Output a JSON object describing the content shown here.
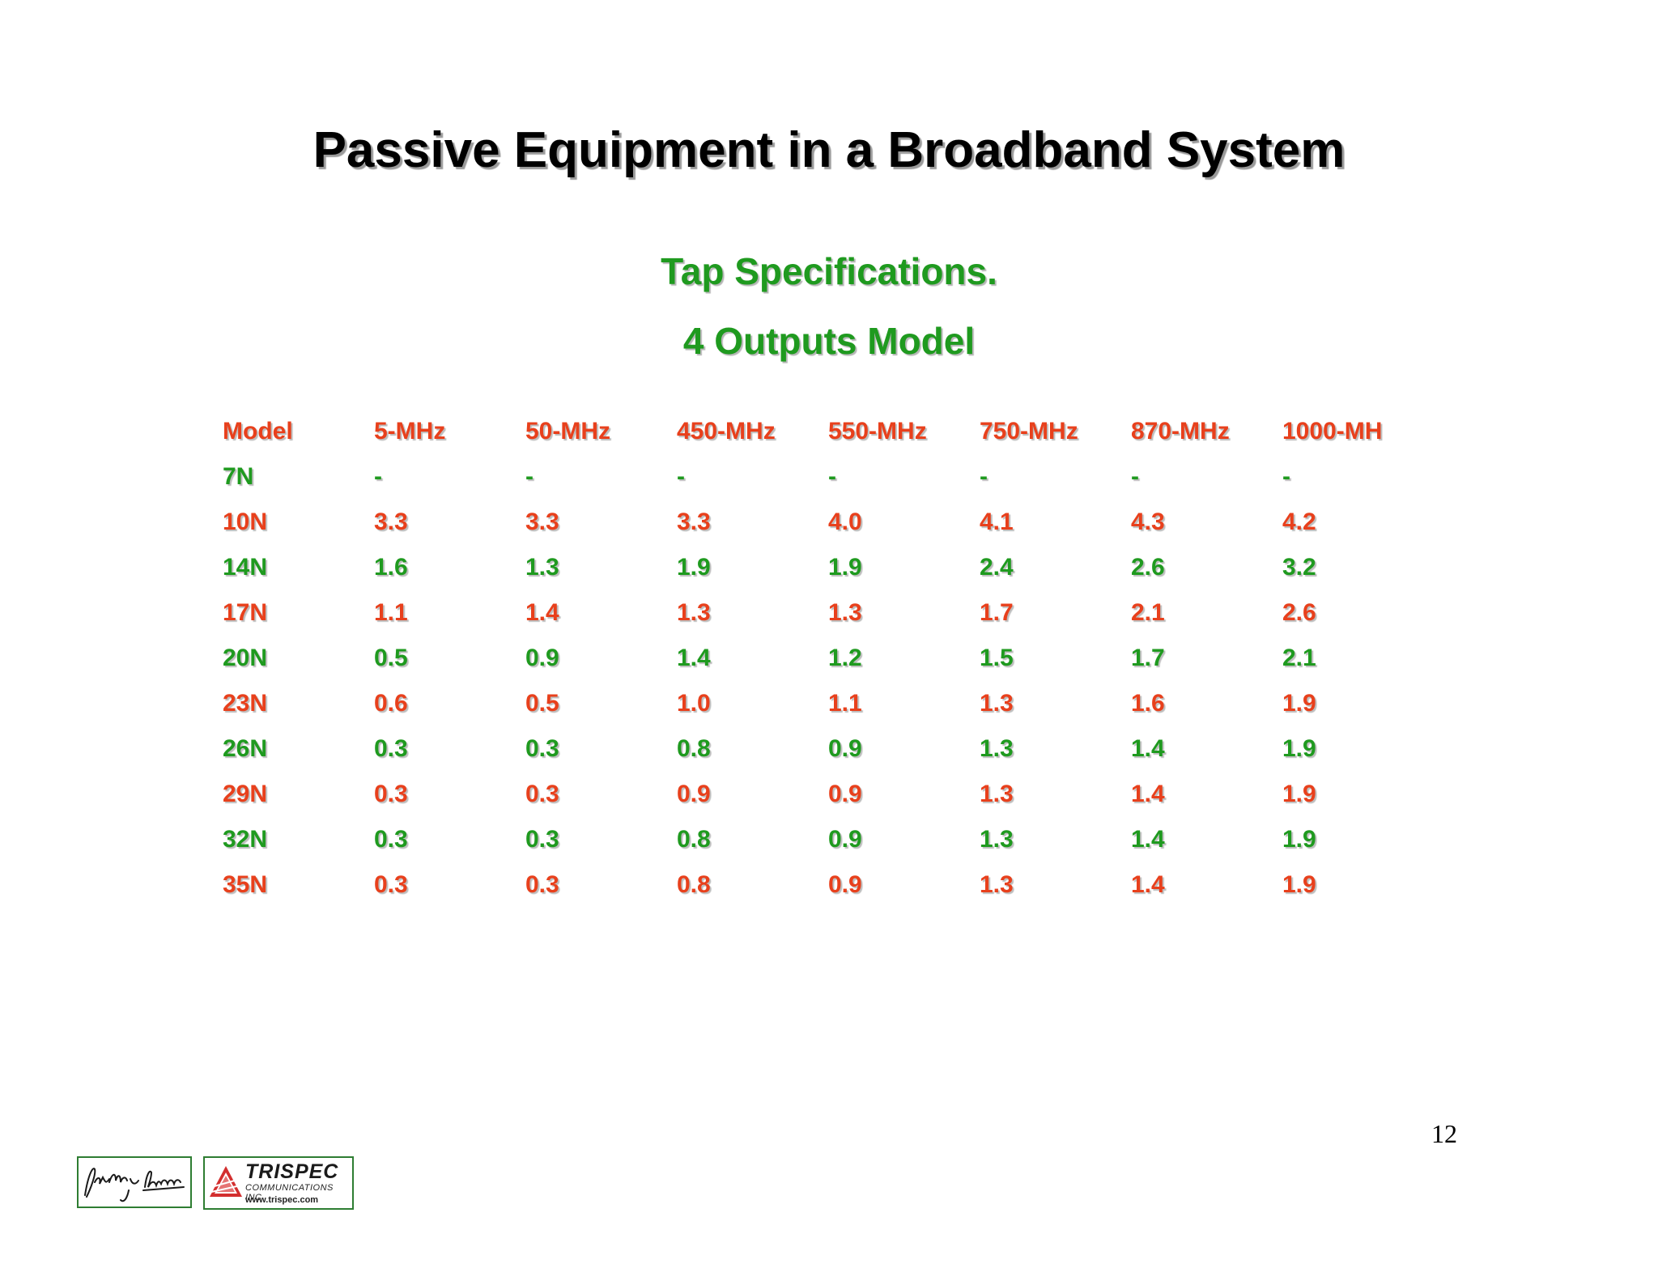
{
  "slide": {
    "title": "Passive Equipment in a Broadband System",
    "subtitle_1": "Tap Specifications.",
    "subtitle_2": "4 Outputs Model",
    "page_number": "12"
  },
  "table": {
    "headers": [
      "Model",
      "5-MHz",
      "50-MHz",
      "450-MHz",
      "550-MHz",
      "750-MHz",
      "870-MHz",
      "1000-MH"
    ],
    "rows": [
      [
        "7N",
        "-",
        "-",
        "-",
        "-",
        "-",
        "-",
        "-"
      ],
      [
        "10N",
        "3.3",
        "3.3",
        "3.3",
        "4.0",
        "4.1",
        "4.3",
        "4.2"
      ],
      [
        "14N",
        "1.6",
        "1.3",
        "1.9",
        "1.9",
        "2.4",
        "2.6",
        "3.2"
      ],
      [
        "17N",
        "1.1",
        "1.4",
        "1.3",
        "1.3",
        "1.7",
        "2.1",
        "2.6"
      ],
      [
        "20N",
        "0.5",
        "0.9",
        "1.4",
        "1.2",
        "1.5",
        "1.7",
        "2.1"
      ],
      [
        "23N",
        "0.6",
        "0.5",
        "1.0",
        "1.1",
        "1.3",
        "1.6",
        "1.9"
      ],
      [
        "26N",
        "0.3",
        "0.3",
        "0.8",
        "0.9",
        "1.3",
        "1.4",
        "1.9"
      ],
      [
        "29N",
        "0.3",
        "0.3",
        "0.9",
        "0.9",
        "1.3",
        "1.4",
        "1.9"
      ],
      [
        "32N",
        "0.3",
        "0.3",
        "0.8",
        "0.9",
        "1.3",
        "1.4",
        "1.9"
      ],
      [
        "35N",
        "0.3",
        "0.3",
        "0.8",
        "0.9",
        "1.3",
        "1.4",
        "1.9"
      ]
    ]
  },
  "colors": {
    "red_rows": "#e8401c",
    "green_rows": "#1f9a1f",
    "title": "#000000"
  },
  "footer": {
    "logo_name": "TRISPEC",
    "logo_subtitle": "COMMUNICATIONS INC",
    "logo_url": "www.trispec.com"
  }
}
